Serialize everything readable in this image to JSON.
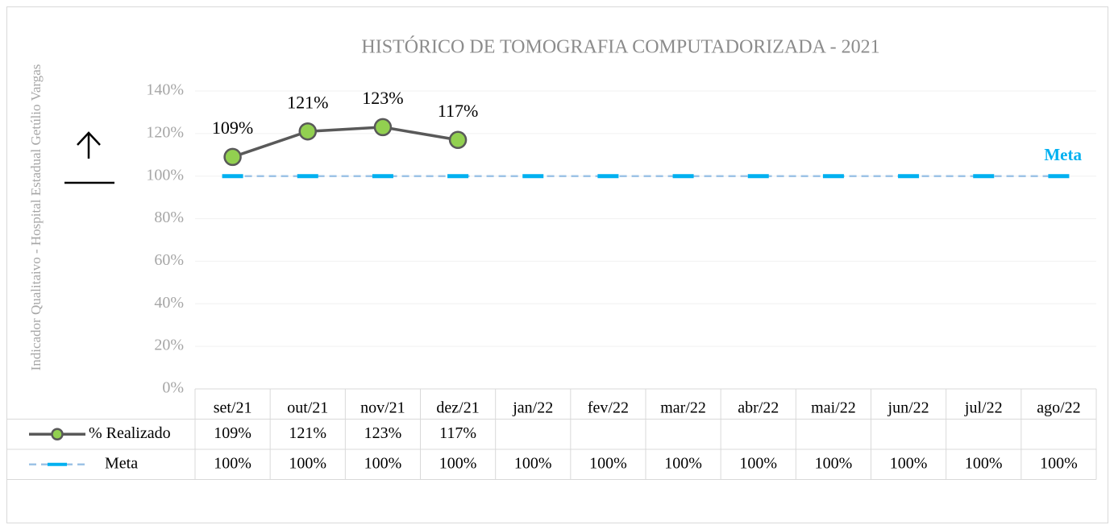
{
  "chart_data": {
    "type": "line",
    "title": "HISTÓRICO DE TOMOGRAFIA COMPUTADORIZADA  - 2021",
    "y_label": "Indicador Qualitaivo - Hospital Estadual Getúlio Vargas",
    "annotation": "Meta",
    "categories": [
      "set/21",
      "out/21",
      "nov/21",
      "dez/21",
      "jan/22",
      "fev/22",
      "mar/22",
      "abr/22",
      "mai/22",
      "jun/22",
      "jul/22",
      "ago/22"
    ],
    "series": [
      {
        "name": "% Realizado",
        "color": "#595959",
        "marker_color": "#92d050",
        "values": [
          109,
          121,
          123,
          117,
          null,
          null,
          null,
          null,
          null,
          null,
          null,
          null
        ],
        "value_labels": [
          "109%",
          "121%",
          "123%",
          "117%",
          null,
          null,
          null,
          null,
          null,
          null,
          null,
          null
        ]
      },
      {
        "name": "Meta",
        "color": "#9dc3e6",
        "marker_color": "#00b0f0",
        "values": [
          100,
          100,
          100,
          100,
          100,
          100,
          100,
          100,
          100,
          100,
          100,
          100
        ],
        "value_labels": [
          "100%",
          "100%",
          "100%",
          "100%",
          "100%",
          "100%",
          "100%",
          "100%",
          "100%",
          "100%",
          "100%",
          "100%"
        ]
      }
    ],
    "ylim": [
      0,
      140
    ],
    "yticks": [
      {
        "value": 0,
        "label": "0%"
      },
      {
        "value": 20,
        "label": "20%"
      },
      {
        "value": 40,
        "label": "40%"
      },
      {
        "value": 60,
        "label": "60%"
      },
      {
        "value": 80,
        "label": "80%"
      },
      {
        "value": 100,
        "label": "100%"
      },
      {
        "value": 120,
        "label": "120%"
      },
      {
        "value": 140,
        "label": "140%"
      }
    ],
    "grid": true,
    "data_table": true
  }
}
